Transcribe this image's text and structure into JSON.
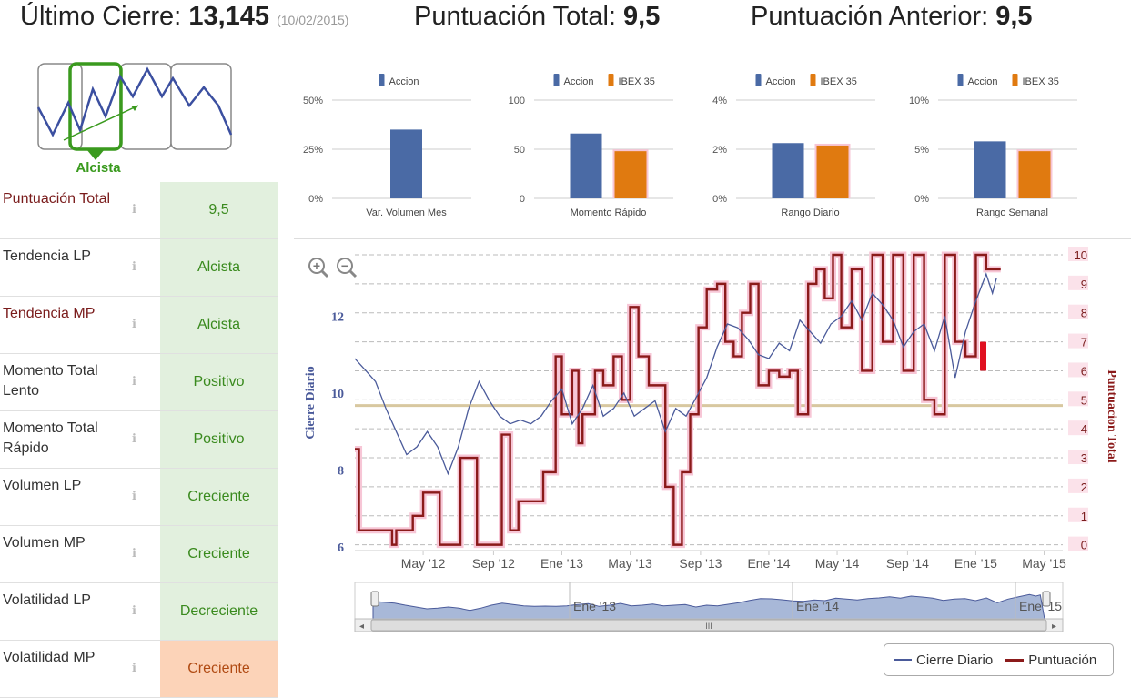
{
  "header": {
    "last_close_label": "Último Cierre:",
    "last_close_value": "13,145",
    "last_close_date": "(10/02/2015)",
    "total_score_label": "Puntuación Total:",
    "total_score_value": "9,5",
    "prev_score_label": "Puntuación Anterior:",
    "prev_score_value": "9,5"
  },
  "trend": {
    "label": "Alcista",
    "color": "#3a9a1e"
  },
  "indicators": [
    {
      "label": "Puntuación Total",
      "value": "9,5",
      "status": "good",
      "label_color": "red"
    },
    {
      "label": "Tendencia LP",
      "value": "Alcista",
      "status": "good",
      "label_color": "dark"
    },
    {
      "label": "Tendencia MP",
      "value": "Alcista",
      "status": "good",
      "label_color": "red"
    },
    {
      "label": "Momento Total Lento",
      "value": "Positivo",
      "status": "good",
      "label_color": "dark"
    },
    {
      "label": "Momento Total Rápido",
      "value": "Positivo",
      "status": "good",
      "label_color": "dark"
    },
    {
      "label": "Volumen LP",
      "value": "Creciente",
      "status": "good",
      "label_color": "dark"
    },
    {
      "label": "Volumen MP",
      "value": "Creciente",
      "status": "good",
      "label_color": "dark"
    },
    {
      "label": "Volatilidad LP",
      "value": "Decreciente",
      "status": "good",
      "label_color": "dark"
    },
    {
      "label": "Volatilidad MP",
      "value": "Creciente",
      "status": "bad",
      "label_color": "dark"
    }
  ],
  "info_glyph": "ℹ",
  "colors": {
    "accion": "#4a6aa5",
    "ibex": "#e07a10",
    "line": "#4a5a9a",
    "score": "#8b1a1a",
    "score_glow": "#f7c6d6",
    "ref": "#d8c8a0"
  },
  "chart_data": [
    {
      "type": "bar",
      "title": "Var. Volumen Mes",
      "legend": [
        "Accion"
      ],
      "yticks": [
        "0%",
        "25%",
        "50%"
      ],
      "ylim": [
        0,
        50
      ],
      "series": [
        {
          "name": "Accion",
          "values": [
            35
          ]
        }
      ]
    },
    {
      "type": "bar",
      "title": "Momento Rápido",
      "legend": [
        "Accion",
        "IBEX 35"
      ],
      "yticks": [
        "0",
        "50",
        "100"
      ],
      "ylim": [
        0,
        100
      ],
      "series": [
        {
          "name": "Accion",
          "values": [
            66
          ]
        },
        {
          "name": "IBEX 35",
          "values": [
            48
          ]
        }
      ]
    },
    {
      "type": "bar",
      "title": "Rango Diario",
      "legend": [
        "Accion",
        "IBEX 35"
      ],
      "yticks": [
        "0%",
        "2%",
        "4%"
      ],
      "ylim": [
        0,
        4
      ],
      "series": [
        {
          "name": "Accion",
          "values": [
            2.25
          ]
        },
        {
          "name": "IBEX 35",
          "values": [
            2.15
          ]
        }
      ]
    },
    {
      "type": "bar",
      "title": "Rango Semanal",
      "legend": [
        "Accion",
        "IBEX 35"
      ],
      "yticks": [
        "0%",
        "5%",
        "10%"
      ],
      "ylim": [
        0,
        10
      ],
      "series": [
        {
          "name": "Accion",
          "values": [
            5.8
          ]
        },
        {
          "name": "IBEX 35",
          "values": [
            4.8
          ]
        }
      ]
    },
    {
      "type": "line",
      "title": "",
      "ylabel_left": "Cierre Diario",
      "ylabel_right": "Puntuacion Total",
      "yticks_left": [
        "6",
        "8",
        "10",
        "12"
      ],
      "ylim_left": [
        5.9,
        13.6
      ],
      "yticks_right": [
        "0",
        "1",
        "2",
        "3",
        "4",
        "5",
        "6",
        "7",
        "8",
        "9",
        "10"
      ],
      "ylim_right": [
        -0.2,
        10
      ],
      "xticks": [
        "May '12",
        "Sep '12",
        "Ene '13",
        "May '13",
        "Sep '13",
        "Ene '14",
        "May '14",
        "Sep '14",
        "Ene '15",
        "May '15"
      ],
      "xlim": [
        2012.0,
        2015.42
      ],
      "xtick_pos": [
        2012.33,
        2012.67,
        2013.0,
        2013.33,
        2013.67,
        2014.0,
        2014.33,
        2014.67,
        2015.0,
        2015.33
      ],
      "ref_level": 4.8,
      "series": [
        {
          "name": "Cierre Diario",
          "x": [
            2012.0,
            2012.05,
            2012.1,
            2012.15,
            2012.2,
            2012.25,
            2012.3,
            2012.35,
            2012.4,
            2012.45,
            2012.5,
            2012.55,
            2012.6,
            2012.65,
            2012.7,
            2012.75,
            2012.8,
            2012.85,
            2012.9,
            2012.95,
            2013.0,
            2013.05,
            2013.1,
            2013.15,
            2013.2,
            2013.25,
            2013.3,
            2013.35,
            2013.4,
            2013.45,
            2013.5,
            2013.55,
            2013.6,
            2013.65,
            2013.7,
            2013.75,
            2013.8,
            2013.85,
            2013.9,
            2013.95,
            2014.0,
            2014.05,
            2014.1,
            2014.15,
            2014.2,
            2014.25,
            2014.3,
            2014.35,
            2014.4,
            2014.45,
            2014.5,
            2014.55,
            2014.6,
            2014.65,
            2014.7,
            2014.75,
            2014.8,
            2014.85,
            2014.9,
            2014.95,
            2015.0,
            2015.05,
            2015.08,
            2015.1
          ],
          "values": [
            10.9,
            10.6,
            10.3,
            9.6,
            9.0,
            8.4,
            8.6,
            9.0,
            8.6,
            7.9,
            8.6,
            9.6,
            10.3,
            9.8,
            9.4,
            9.2,
            9.3,
            9.2,
            9.4,
            9.8,
            10.1,
            9.2,
            9.6,
            10.2,
            9.4,
            9.6,
            10.0,
            9.4,
            9.6,
            9.8,
            9.0,
            9.6,
            9.4,
            9.9,
            10.4,
            11.2,
            11.8,
            11.7,
            11.4,
            11.0,
            10.9,
            11.3,
            11.1,
            11.9,
            11.6,
            11.3,
            11.8,
            12.0,
            12.4,
            11.9,
            12.6,
            12.3,
            11.9,
            11.2,
            11.6,
            11.8,
            11.1,
            12.0,
            10.4,
            11.6,
            12.4,
            13.1,
            12.6,
            13.0
          ]
        },
        {
          "name": "Puntuación",
          "x": [
            2012.0,
            2012.02,
            2012.18,
            2012.2,
            2012.28,
            2012.33,
            2012.41,
            2012.51,
            2012.59,
            2012.71,
            2012.75,
            2012.79,
            2012.91,
            2012.97,
            2013.0,
            2013.05,
            2013.08,
            2013.1,
            2013.16,
            2013.2,
            2013.25,
            2013.29,
            2013.33,
            2013.37,
            2013.42,
            2013.5,
            2013.54,
            2013.58,
            2013.62,
            2013.66,
            2013.7,
            2013.75,
            2013.79,
            2013.83,
            2013.87,
            2013.91,
            2013.95,
            2014.0,
            2014.05,
            2014.1,
            2014.14,
            2014.19,
            2014.23,
            2014.27,
            2014.31,
            2014.35,
            2014.4,
            2014.45,
            2014.5,
            2014.55,
            2014.6,
            2014.65,
            2014.7,
            2014.75,
            2014.8,
            2014.85,
            2014.9,
            2014.95,
            2015.0,
            2015.05,
            2015.1
          ],
          "values": [
            3.3,
            0.5,
            0.0,
            0.5,
            1.0,
            1.8,
            0.0,
            3.0,
            0.0,
            3.8,
            0.5,
            1.5,
            2.5,
            6.5,
            4.5,
            6.0,
            3.5,
            4.5,
            6.0,
            5.5,
            6.5,
            5.0,
            8.2,
            6.5,
            5.5,
            2.0,
            0.0,
            2.5,
            4.5,
            7.5,
            8.8,
            9.0,
            7.0,
            6.5,
            8.0,
            9.0,
            5.5,
            6.0,
            5.8,
            6.0,
            4.5,
            9.0,
            9.5,
            8.5,
            10.0,
            7.5,
            9.5,
            6.0,
            10.0,
            7.0,
            10.0,
            6.0,
            10.0,
            5.0,
            4.5,
            10.0,
            7.0,
            6.5,
            10.0,
            9.5,
            9.5
          ]
        }
      ],
      "navigator_xticks": [
        "Ene '13",
        "Ene '14",
        "Ene '15"
      ]
    }
  ],
  "legend": {
    "series1": "Cierre Diario",
    "series2": "Puntuación"
  }
}
